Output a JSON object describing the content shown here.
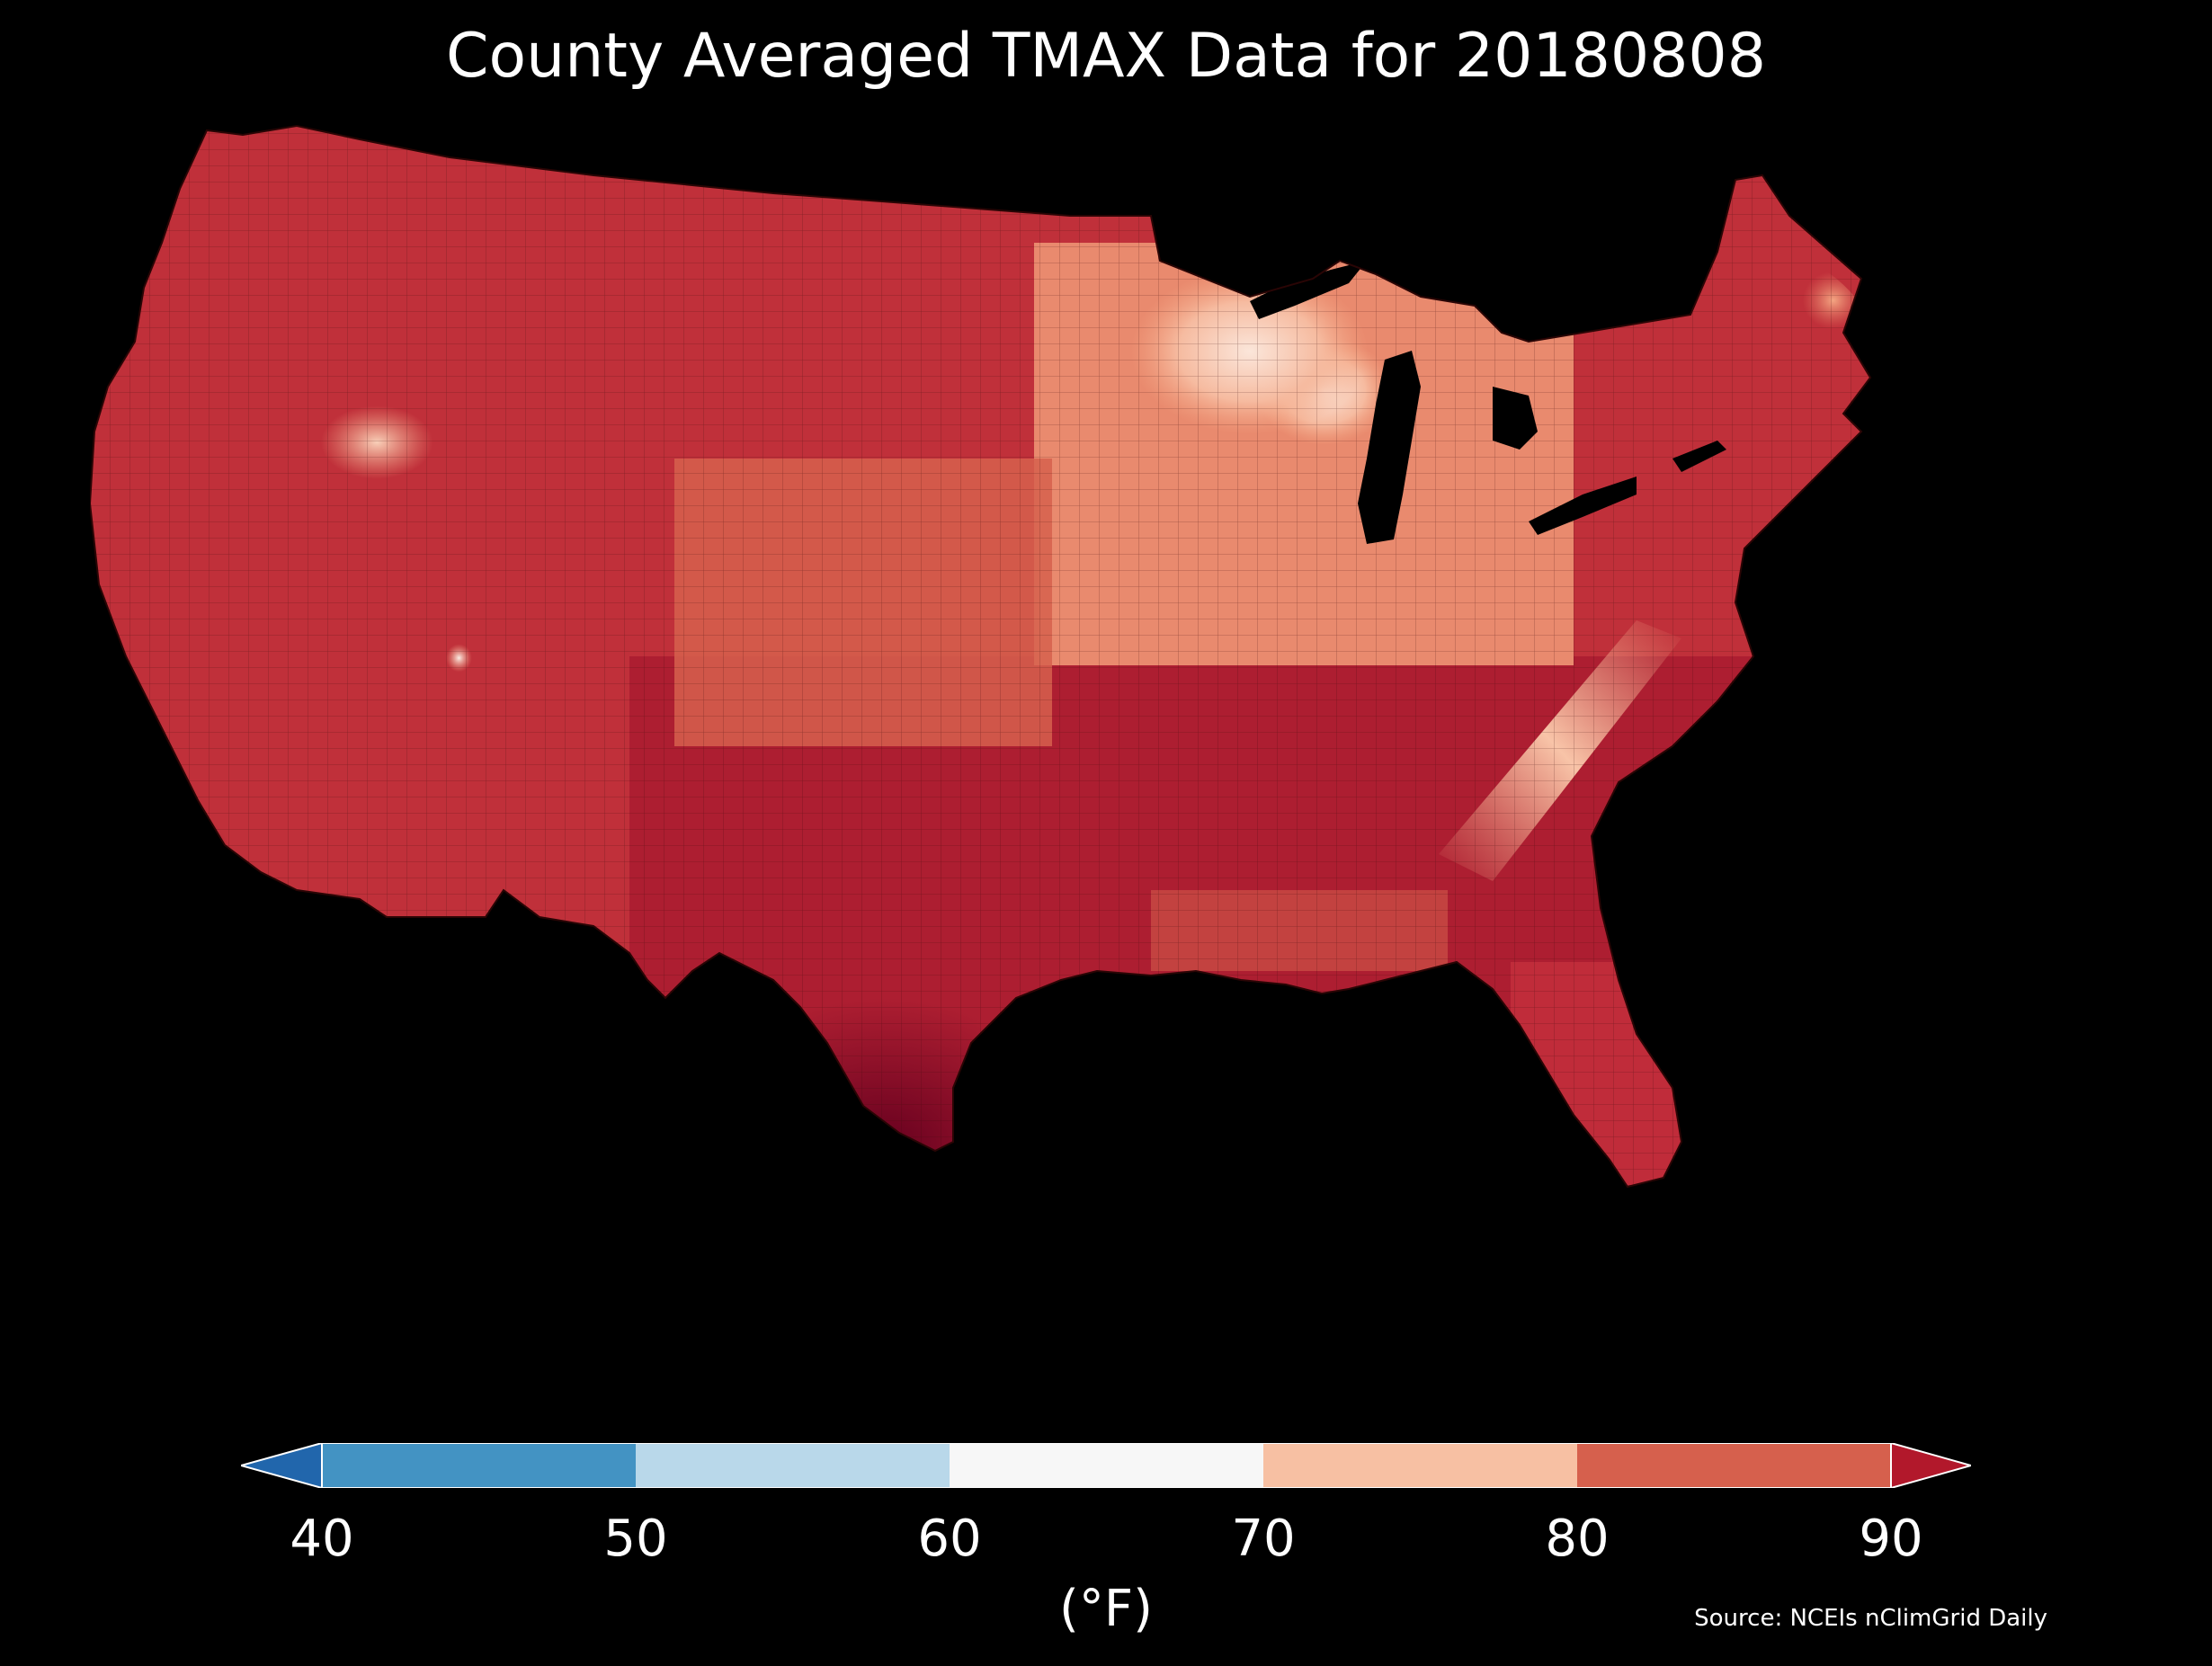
{
  "title": "County Averaged TMAX Data for 20180808",
  "colorbar": {
    "ticks": [
      "40",
      "50",
      "60",
      "70",
      "80",
      "90"
    ],
    "units": "(°F)",
    "under_color": "#2166ac",
    "over_color": "#b2182b",
    "bins": [
      {
        "range": [
          40,
          50
        ],
        "color": "#4393c3"
      },
      {
        "range": [
          50,
          60
        ],
        "color": "#b9d8ea"
      },
      {
        "range": [
          60,
          70
        ],
        "color": "#f7f7f7"
      },
      {
        "range": [
          70,
          80
        ],
        "color": "#f7c0a3"
      },
      {
        "range": [
          80,
          90
        ],
        "color": "#d6604d"
      }
    ]
  },
  "source": "Source: NCEIs nClimGrid Daily",
  "map": {
    "region": "Contiguous United States",
    "variable": "TMAX",
    "date": "20180808",
    "palette": {
      "hottest": "#67001f",
      "very_hot": "#8b0f24",
      "hot": "#b2182b",
      "warm": "#d6604d",
      "mild": "#f4a582",
      "cool": "#fddbc7",
      "coolest": "#fbeee6"
    }
  }
}
